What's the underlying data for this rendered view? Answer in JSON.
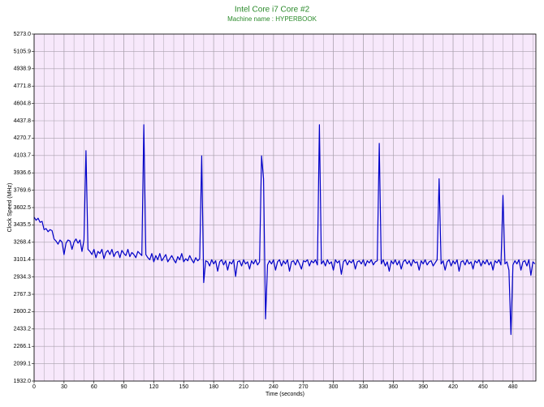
{
  "chart_data": {
    "type": "line",
    "title": "Intel Core i7 Core #2",
    "subtitle": "Machine name : HYPERBOOK",
    "x_label": "Time (seconds)",
    "y_label": "Clock Speed (MHz)",
    "color": "#0000c8",
    "grid": true,
    "x_minor_step": 10,
    "xlim": [
      0,
      503
    ],
    "ylim": [
      1932.0,
      5273.0
    ],
    "xticks": [
      0,
      30,
      60,
      90,
      120,
      150,
      180,
      210,
      240,
      270,
      300,
      330,
      360,
      390,
      420,
      450,
      480
    ],
    "yticks": [
      {
        "value": 1932.0,
        "label": "1932.0"
      },
      {
        "value": 2099.1,
        "label": "2099.1"
      },
      {
        "value": 2266.1,
        "label": "2266.1"
      },
      {
        "value": 2433.2,
        "label": "2433.2"
      },
      {
        "value": 2600.2,
        "label": "2600.2"
      },
      {
        "value": 2767.3,
        "label": "2767.3"
      },
      {
        "value": 2934.3,
        "label": "2934.3"
      },
      {
        "value": 3101.4,
        "label": "3101.4"
      },
      {
        "value": 3268.4,
        "label": "3268.4"
      },
      {
        "value": 3435.5,
        "label": "3435.5"
      },
      {
        "value": 3602.5,
        "label": "3602.5"
      },
      {
        "value": 3769.6,
        "label": "3769.6"
      },
      {
        "value": 3936.6,
        "label": "3936.6"
      },
      {
        "value": 4103.7,
        "label": "4103.7"
      },
      {
        "value": 4270.7,
        "label": "4270.7"
      },
      {
        "value": 4437.8,
        "label": "4437.8"
      },
      {
        "value": 4604.8,
        "label": "4604.8"
      },
      {
        "value": 4771.8,
        "label": "4771.8"
      },
      {
        "value": 4938.9,
        "label": "4938.9"
      },
      {
        "value": 5105.9,
        "label": "5105.9"
      },
      {
        "value": 5273.0,
        "label": "5273.0"
      }
    ],
    "x": [
      0,
      2,
      4,
      6,
      8,
      10,
      12,
      14,
      16,
      18,
      20,
      22,
      24,
      26,
      28,
      30,
      32,
      34,
      36,
      38,
      40,
      42,
      44,
      46,
      48,
      50,
      52,
      54,
      56,
      58,
      60,
      62,
      64,
      66,
      68,
      70,
      72,
      74,
      76,
      78,
      80,
      82,
      84,
      86,
      88,
      90,
      92,
      94,
      96,
      98,
      100,
      102,
      104,
      106,
      108,
      110,
      112,
      114,
      116,
      118,
      120,
      122,
      124,
      126,
      128,
      130,
      132,
      134,
      136,
      138,
      140,
      142,
      144,
      146,
      148,
      150,
      152,
      154,
      156,
      158,
      160,
      162,
      164,
      166,
      168,
      170,
      172,
      174,
      176,
      178,
      180,
      182,
      184,
      186,
      188,
      190,
      192,
      194,
      196,
      198,
      200,
      202,
      204,
      206,
      208,
      210,
      212,
      214,
      216,
      218,
      220,
      222,
      224,
      226,
      228,
      230,
      232,
      234,
      236,
      238,
      240,
      242,
      244,
      246,
      248,
      250,
      252,
      254,
      256,
      258,
      260,
      262,
      264,
      266,
      268,
      270,
      272,
      274,
      276,
      278,
      280,
      282,
      284,
      286,
      288,
      290,
      292,
      294,
      296,
      298,
      300,
      302,
      304,
      306,
      308,
      310,
      312,
      314,
      316,
      318,
      320,
      322,
      324,
      326,
      328,
      330,
      332,
      334,
      336,
      338,
      340,
      342,
      344,
      346,
      348,
      350,
      352,
      354,
      356,
      358,
      360,
      362,
      364,
      366,
      368,
      370,
      372,
      374,
      376,
      378,
      380,
      382,
      384,
      386,
      388,
      390,
      392,
      394,
      396,
      398,
      400,
      402,
      404,
      406,
      408,
      410,
      412,
      414,
      416,
      418,
      420,
      422,
      424,
      426,
      428,
      430,
      432,
      434,
      436,
      438,
      440,
      442,
      444,
      446,
      448,
      450,
      452,
      454,
      456,
      458,
      460,
      462,
      464,
      466,
      468,
      470,
      472,
      474,
      476,
      478,
      480,
      482,
      484,
      486,
      488,
      490,
      492,
      494,
      496,
      498,
      500,
      502
    ],
    "values": [
      3510,
      3480,
      3500,
      3460,
      3470,
      3390,
      3400,
      3370,
      3390,
      3380,
      3300,
      3280,
      3250,
      3290,
      3270,
      3150,
      3260,
      3290,
      3280,
      3200,
      3270,
      3300,
      3260,
      3290,
      3180,
      3290,
      4150,
      3200,
      3180,
      3150,
      3200,
      3120,
      3180,
      3160,
      3200,
      3110,
      3170,
      3190,
      3150,
      3200,
      3130,
      3170,
      3180,
      3120,
      3190,
      3160,
      3140,
      3200,
      3130,
      3170,
      3150,
      3120,
      3180,
      3160,
      3140,
      4400,
      3150,
      3120,
      3100,
      3160,
      3080,
      3140,
      3100,
      3160,
      3090,
      3120,
      3150,
      3080,
      3110,
      3140,
      3100,
      3070,
      3130,
      3100,
      3160,
      3080,
      3110,
      3090,
      3140,
      3100,
      3070,
      3120,
      3090,
      3110,
      4100,
      2880,
      3090,
      3080,
      3040,
      3100,
      3060,
      3090,
      2990,
      3080,
      3100,
      3050,
      3090,
      3000,
      3080,
      3060,
      3100,
      2940,
      3080,
      3090,
      3040,
      3100,
      3060,
      3080,
      3010,
      3090,
      3060,
      3100,
      3050,
      3080,
      4100,
      3880,
      2530,
      3050,
      3090,
      3060,
      3100,
      3000,
      3080,
      3100,
      3040,
      3090,
      3060,
      3100,
      2990,
      3080,
      3090,
      3050,
      3100,
      3060,
      3010,
      3090,
      3080,
      3100,
      3040,
      3090,
      3070,
      3100,
      3050,
      4400,
      3060,
      3090,
      3040,
      3100,
      3060,
      3080,
      3000,
      3100,
      3070,
      3090,
      2960,
      3080,
      3100,
      3050,
      3090,
      3070,
      3100,
      3010,
      3080,
      3090,
      3060,
      3100,
      3040,
      3090,
      3070,
      3100,
      3050,
      3080,
      3090,
      4220,
      3060,
      3100,
      3040,
      3080,
      2990,
      3090,
      3060,
      3100,
      3050,
      3090,
      3010,
      3080,
      3100,
      3060,
      3090,
      3040,
      3100,
      3070,
      3080,
      3000,
      3090,
      3060,
      3100,
      3050,
      3080,
      3090,
      3040,
      3070,
      3100,
      3880,
      3060,
      3090,
      3000,
      3080,
      3100,
      3040,
      3090,
      3060,
      3100,
      2990,
      3080,
      3090,
      3050,
      3100,
      3060,
      3080,
      3010,
      3090,
      3070,
      3100,
      3040,
      3090,
      3060,
      3100,
      3050,
      3080,
      3000,
      3090,
      3070,
      3100,
      3050,
      3720,
      3060,
      3080,
      3000,
      2380,
      3050,
      3090,
      3060,
      3100,
      3000,
      3080,
      3090,
      3040,
      3100,
      2950,
      3080,
      3060
    ]
  }
}
